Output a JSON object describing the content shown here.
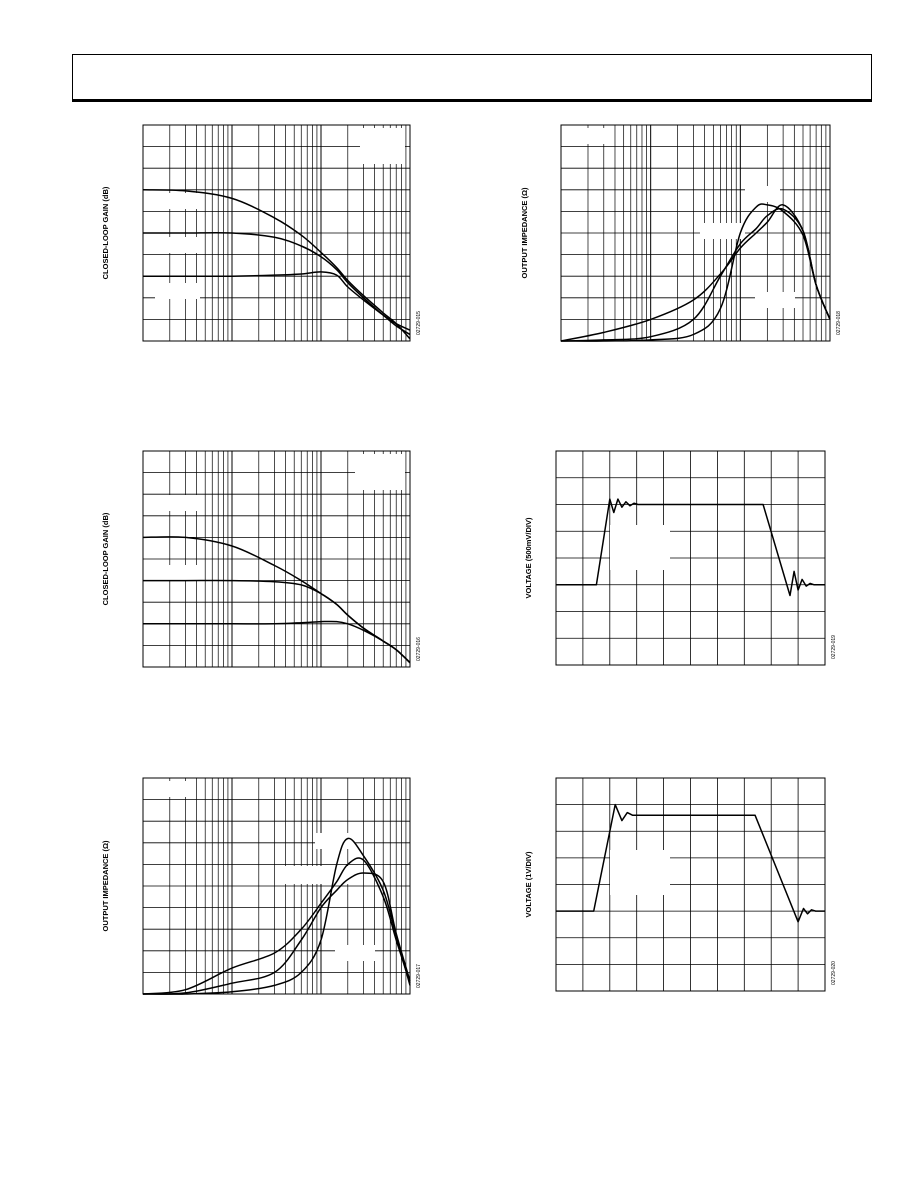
{
  "page": {
    "header_text": ""
  },
  "chart_data": [
    {
      "id": "plot-1",
      "type": "line",
      "xscale": "log",
      "title": "",
      "xlabel": "",
      "ylabel": "CLOSED-LOOP GAIN (dB)",
      "figure_id": "02729-015",
      "x": [
        1,
        3,
        10,
        30,
        60,
        100,
        150,
        200,
        300,
        500,
        700,
        1000
      ],
      "xlim": [
        1,
        1000
      ],
      "ylim": [
        0,
        10
      ],
      "grid": true,
      "series": [
        {
          "values": [
            7.0,
            6.95,
            6.6,
            5.7,
            4.9,
            4.1,
            3.4,
            2.8,
            2.1,
            1.3,
            0.8,
            0.1
          ]
        },
        {
          "values": [
            5.0,
            5.0,
            5.0,
            4.8,
            4.4,
            3.9,
            3.3,
            2.7,
            2.0,
            1.2,
            0.7,
            0.3
          ]
        },
        {
          "values": [
            3.0,
            3.0,
            3.0,
            3.05,
            3.1,
            3.2,
            3.05,
            2.5,
            1.9,
            1.2,
            0.8,
            0.5
          ]
        }
      ]
    },
    {
      "id": "plot-2",
      "type": "line",
      "xscale": "log",
      "title": "",
      "xlabel": "",
      "ylabel": "CLOSED-LOOP GAIN (dB)",
      "figure_id": "02729-016",
      "x": [
        1,
        3,
        10,
        30,
        60,
        100,
        150,
        200,
        300,
        500,
        700,
        1000
      ],
      "xlim": [
        1,
        1000
      ],
      "ylim": [
        0,
        10
      ],
      "grid": true,
      "series": [
        {
          "values": [
            6.0,
            6.0,
            5.6,
            4.7,
            4.0,
            3.4,
            2.9,
            2.4,
            1.8,
            1.2,
            0.8,
            0.2
          ]
        },
        {
          "values": [
            4.0,
            4.0,
            4.0,
            3.95,
            3.8,
            3.4,
            2.9,
            2.4,
            1.8,
            1.2,
            0.8,
            0.2
          ]
        },
        {
          "values": [
            2.0,
            2.0,
            2.0,
            2.0,
            2.05,
            2.1,
            2.1,
            2.0,
            1.7,
            1.2,
            0.8,
            0.2
          ]
        }
      ]
    },
    {
      "id": "plot-3",
      "type": "line",
      "xscale": "log",
      "title": "",
      "xlabel": "",
      "ylabel": "OUTPUT IMPEDANCE (Ω)",
      "figure_id": "02729-017",
      "x": [
        1,
        3,
        10,
        30,
        60,
        100,
        150,
        200,
        300,
        500,
        700,
        1000
      ],
      "xlim": [
        1,
        1000
      ],
      "ylim": [
        0,
        10
      ],
      "grid": true,
      "series": [
        {
          "values": [
            0.0,
            0.2,
            1.2,
            1.9,
            3.0,
            4.2,
            5.2,
            6.0,
            6.2,
            4.5,
            2.5,
            0.5
          ]
        },
        {
          "values": [
            0.0,
            0.05,
            0.5,
            1.0,
            2.5,
            4.0,
            4.8,
            5.3,
            5.6,
            5.2,
            2.8,
            0.6
          ]
        },
        {
          "values": [
            0.0,
            0.0,
            0.1,
            0.4,
            1.0,
            2.5,
            6.0,
            7.2,
            6.4,
            4.8,
            2.7,
            0.4
          ]
        }
      ]
    },
    {
      "id": "plot-4",
      "type": "line",
      "xscale": "log",
      "title": "",
      "xlabel": "",
      "ylabel": "OUTPUT IMPEDANCE (Ω)",
      "figure_id": "02729-018",
      "x": [
        1,
        3,
        10,
        30,
        60,
        100,
        150,
        200,
        300,
        500,
        700,
        1000
      ],
      "xlim": [
        1,
        1000
      ],
      "ylim": [
        0,
        10
      ],
      "grid": true,
      "series": [
        {
          "values": [
            0.0,
            0.4,
            1.0,
            1.9,
            3.1,
            4.3,
            5.0,
            5.5,
            6.3,
            5.1,
            2.6,
            1.0
          ]
        },
        {
          "values": [
            0.0,
            0.05,
            0.2,
            1.0,
            3.0,
            4.5,
            5.2,
            5.8,
            6.1,
            5.1,
            2.6,
            1.0
          ]
        },
        {
          "values": [
            0.0,
            0.0,
            0.05,
            0.3,
            1.5,
            5.0,
            6.2,
            6.3,
            6.0,
            4.9,
            2.6,
            1.0
          ]
        }
      ]
    },
    {
      "id": "plot-5",
      "type": "line",
      "title": "",
      "xlabel": "",
      "ylabel": "VOLTAGE (500mV/DIV)",
      "figure_id": "02729-019",
      "xlim": [
        0,
        10
      ],
      "ylim": [
        -4,
        4
      ],
      "grid": true,
      "series": [
        {
          "x": [
            0,
            1.5,
            2.0,
            2.15,
            2.3,
            2.45,
            2.6,
            2.75,
            2.9,
            3.05,
            3.2,
            3.5,
            7.7,
            8.7,
            8.85,
            9.0,
            9.15,
            9.3,
            9.45,
            9.6,
            10
          ],
          "values": [
            -1.0,
            -1.0,
            2.2,
            1.7,
            2.2,
            1.9,
            2.1,
            1.95,
            2.05,
            2.0,
            2.0,
            2.0,
            2.0,
            -1.4,
            -0.5,
            -1.2,
            -0.8,
            -1.05,
            -0.95,
            -1.0,
            -1.0
          ]
        }
      ]
    },
    {
      "id": "plot-6",
      "type": "line",
      "title": "",
      "xlabel": "",
      "ylabel": "VOLTAGE (1V/DIV)",
      "figure_id": "02729-020",
      "xlim": [
        0,
        10
      ],
      "ylim": [
        -4,
        4
      ],
      "grid": true,
      "series": [
        {
          "x": [
            0,
            1.4,
            2.2,
            2.45,
            2.65,
            2.85,
            3.0,
            7.4,
            9.0,
            9.2,
            9.35,
            9.5,
            9.65,
            10
          ],
          "values": [
            -1.0,
            -1.0,
            3.0,
            2.4,
            2.7,
            2.6,
            2.6,
            2.6,
            -1.4,
            -0.9,
            -1.1,
            -0.95,
            -1.0,
            -1.0
          ]
        }
      ]
    }
  ]
}
